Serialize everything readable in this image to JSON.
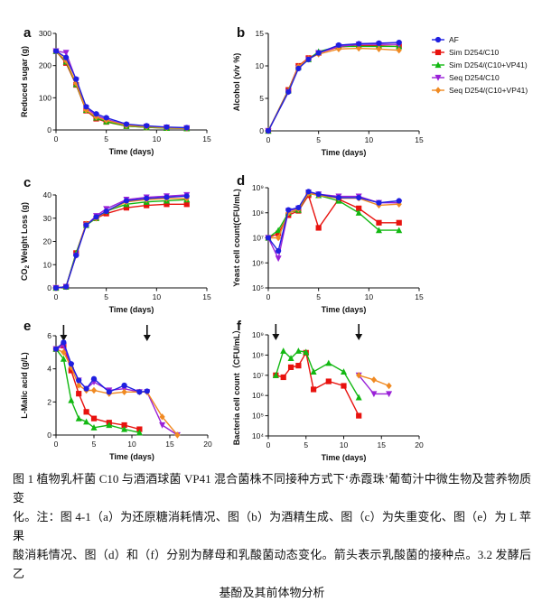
{
  "legend": [
    {
      "label": "AF",
      "color": "#1f1fe0"
    },
    {
      "label": "Sim D254/C10",
      "color": "#e8120e"
    },
    {
      "label": "Sim D254/(C10+VP41)",
      "color": "#12b812"
    },
    {
      "label": "Seq D254/C10",
      "color": "#9a21d8"
    },
    {
      "label": "Seq D254/(C10+VP41)",
      "color": "#f08a22"
    }
  ],
  "chart_data": [
    {
      "panel": "a",
      "type": "line",
      "xlabel": "Time (days)",
      "ylabel": "Reduced sugar (g)",
      "xlim": [
        0,
        15
      ],
      "ylim": [
        0,
        300
      ],
      "xticks": [
        0,
        5,
        10,
        15
      ],
      "yticks": [
        0,
        100,
        200,
        300
      ],
      "series": [
        {
          "name": "AF",
          "x": [
            0,
            1,
            2,
            3,
            4,
            5,
            7,
            9,
            11,
            13
          ],
          "y": [
            245,
            225,
            158,
            72,
            50,
            38,
            18,
            13,
            9,
            7
          ]
        },
        {
          "name": "Sim D254/C10",
          "x": [
            0,
            1,
            2,
            3,
            4,
            5,
            7,
            9,
            11,
            13
          ],
          "y": [
            245,
            208,
            140,
            60,
            35,
            25,
            12,
            8,
            6,
            5
          ]
        },
        {
          "name": "Sim D254/(C10+VP41)",
          "x": [
            0,
            1,
            2,
            3,
            4,
            5,
            7,
            9,
            11,
            13
          ],
          "y": [
            245,
            212,
            142,
            62,
            38,
            26,
            12,
            8,
            6,
            5
          ]
        },
        {
          "name": "Seq D254/C10",
          "x": [
            0,
            1,
            2,
            3,
            4,
            5,
            7,
            9,
            11,
            13
          ],
          "y": [
            245,
            240,
            155,
            68,
            45,
            33,
            15,
            11,
            8,
            6
          ]
        },
        {
          "name": "Seq D254/(C10+VP41)",
          "x": [
            0,
            1,
            2,
            3,
            4,
            5,
            7,
            9,
            11,
            13
          ],
          "y": [
            245,
            215,
            145,
            62,
            40,
            30,
            14,
            10,
            7,
            5
          ]
        }
      ]
    },
    {
      "panel": "b",
      "type": "line",
      "xlabel": "Time (days)",
      "ylabel": "Alcohol (v/v %)",
      "xlim": [
        0,
        15
      ],
      "ylim": [
        0,
        15
      ],
      "xticks": [
        0,
        5,
        10,
        15
      ],
      "yticks": [
        0,
        5,
        10,
        15
      ],
      "series": [
        {
          "name": "AF",
          "x": [
            0,
            2,
            3,
            4,
            5,
            7,
            9,
            11,
            13
          ],
          "y": [
            0,
            6,
            9.6,
            11,
            12,
            13.2,
            13.4,
            13.5,
            13.6
          ]
        },
        {
          "name": "Sim D254/C10",
          "x": [
            0,
            2,
            3,
            4,
            5,
            7,
            9,
            11,
            13
          ],
          "y": [
            0,
            6.3,
            10,
            11.2,
            12,
            12.9,
            13.1,
            13.1,
            13
          ]
        },
        {
          "name": "Sim D254/(C10+VP41)",
          "x": [
            0,
            2,
            3,
            4,
            5,
            7,
            9,
            11,
            13
          ],
          "y": [
            0,
            6.2,
            9.8,
            11,
            12.2,
            13,
            13,
            13,
            13
          ]
        },
        {
          "name": "Seq D254/C10",
          "x": [
            0,
            2,
            3,
            4,
            5,
            7,
            9,
            11,
            13
          ],
          "y": [
            0,
            6,
            9.7,
            11,
            12,
            13,
            13.3,
            13.3,
            13.3
          ]
        },
        {
          "name": "Seq D254/(C10+VP41)",
          "x": [
            0,
            2,
            3,
            4,
            5,
            7,
            9,
            11,
            13
          ],
          "y": [
            0,
            6.1,
            9.9,
            11.1,
            11.8,
            12.6,
            12.7,
            12.6,
            12.4
          ]
        }
      ]
    },
    {
      "panel": "c",
      "type": "line",
      "xlabel": "Time (days)",
      "ylabel": "CO2 Weight Loss (g)",
      "xlim": [
        0,
        15
      ],
      "ylim": [
        0,
        40
      ],
      "xticks": [
        0,
        5,
        10,
        15
      ],
      "yticks": [
        0,
        10,
        20,
        30,
        40
      ],
      "series": [
        {
          "name": "AF",
          "x": [
            0,
            1,
            2,
            3,
            4,
            5,
            7,
            9,
            11,
            13
          ],
          "y": [
            0,
            0.5,
            14,
            27,
            30.5,
            33,
            37.5,
            38.5,
            39,
            39.5
          ]
        },
        {
          "name": "Sim D254/C10",
          "x": [
            0,
            1,
            2,
            3,
            4,
            5,
            7,
            9,
            11,
            13
          ],
          "y": [
            0,
            0.5,
            15,
            27.5,
            30,
            32,
            34.5,
            35.5,
            36,
            36
          ]
        },
        {
          "name": "Sim D254/(C10+VP41)",
          "x": [
            0,
            1,
            2,
            3,
            4,
            5,
            7,
            9,
            11,
            13
          ],
          "y": [
            0,
            0.5,
            15,
            27,
            30,
            33,
            36,
            37,
            37.5,
            38
          ]
        },
        {
          "name": "Seq D254/C10",
          "x": [
            0,
            1,
            2,
            3,
            4,
            5,
            7,
            9,
            11,
            13
          ],
          "y": [
            0,
            0.5,
            14,
            27,
            31,
            34,
            38,
            39,
            39.5,
            40
          ]
        },
        {
          "name": "Seq D254/(C10+VP41)",
          "x": [
            0,
            1,
            2,
            3,
            4,
            5,
            7,
            9,
            11,
            13
          ],
          "y": [
            0,
            0.5,
            14,
            27.5,
            30,
            33,
            37,
            38,
            38.5,
            38.5
          ]
        }
      ]
    },
    {
      "panel": "d",
      "type": "line",
      "xlabel": "Time (days)",
      "ylabel": "Yeast cell count(CFU/mL)",
      "yscale": "log",
      "xlim": [
        0,
        15
      ],
      "ylim": [
        100000,
        1000000000
      ],
      "xticks": [
        0,
        5,
        10,
        15
      ],
      "yticks": [
        100000,
        1000000,
        10000000,
        100000000,
        1000000000
      ],
      "yticklabels": [
        "10⁵",
        "10⁶",
        "10⁷",
        "10⁸",
        "10⁹"
      ],
      "series": [
        {
          "name": "AF",
          "x": [
            0,
            1,
            2,
            3,
            4,
            5,
            7,
            9,
            11,
            13
          ],
          "y": [
            10000000,
            3000000,
            130000000,
            160000000,
            700000000,
            550000000,
            400000000,
            400000000,
            250000000,
            300000000
          ]
        },
        {
          "name": "Sim D254/C10",
          "x": [
            0,
            1,
            2,
            3,
            4,
            5,
            7,
            9,
            11,
            13
          ],
          "y": [
            10000000,
            15000000,
            80000000,
            120000000,
            500000000,
            25000000,
            350000000,
            150000000,
            40000000,
            40000000
          ]
        },
        {
          "name": "Sim D254/(C10+VP41)",
          "x": [
            0,
            1,
            2,
            3,
            4,
            5,
            7,
            9,
            11,
            13
          ],
          "y": [
            10000000,
            20000000,
            100000000,
            130000000,
            600000000,
            500000000,
            300000000,
            100000000,
            20000000,
            20000000
          ]
        },
        {
          "name": "Seq D254/C10",
          "x": [
            0,
            1,
            2,
            3,
            4,
            5,
            7,
            9,
            11,
            13
          ],
          "y": [
            10000000,
            1500000,
            120000000,
            150000000,
            650000000,
            550000000,
            450000000,
            450000000,
            250000000,
            250000000
          ]
        },
        {
          "name": "Seq D254/(C10+VP41)",
          "x": [
            0,
            1,
            2,
            3,
            4,
            5,
            7,
            9,
            11,
            13
          ],
          "y": [
            10000000,
            10000000,
            100000000,
            140000000,
            600000000,
            500000000,
            380000000,
            380000000,
            200000000,
            220000000
          ]
        }
      ]
    },
    {
      "panel": "e",
      "type": "line",
      "xlabel": "Time (days)",
      "ylabel": "L-Malic acid (g/L)",
      "xlim": [
        0,
        20
      ],
      "ylim": [
        0,
        6
      ],
      "xticks": [
        0,
        5,
        10,
        15,
        20
      ],
      "yticks": [
        0,
        2,
        4,
        6
      ],
      "arrows_at_x": [
        1,
        12
      ],
      "series": [
        {
          "name": "AF",
          "x": [
            0,
            1,
            2,
            3,
            4,
            5,
            7,
            9,
            11,
            12
          ],
          "y": [
            5.2,
            5.6,
            4.3,
            3.3,
            2.8,
            3.4,
            2.6,
            3.0,
            2.6,
            2.65
          ]
        },
        {
          "name": "Sim D254/C10",
          "x": [
            0,
            1,
            2,
            3,
            4,
            5,
            7,
            9,
            11
          ],
          "y": [
            5.2,
            5.4,
            3.9,
            2.5,
            1.4,
            1.0,
            0.75,
            0.6,
            0.35
          ]
        },
        {
          "name": "Sim D254/(C10+VP41)",
          "x": [
            0,
            1,
            2,
            3,
            4,
            5,
            7,
            9,
            11
          ],
          "y": [
            5.2,
            4.6,
            2.1,
            1.0,
            0.8,
            0.45,
            0.6,
            0.35,
            0.15
          ]
        },
        {
          "name": "Seq D254/C10",
          "x": [
            0,
            1,
            2,
            3,
            4,
            5,
            7,
            9,
            11,
            12,
            14,
            16
          ],
          "y": [
            5.2,
            5.4,
            4.2,
            3.3,
            2.8,
            3.2,
            2.7,
            2.8,
            2.6,
            2.6,
            0.6,
            0
          ]
        },
        {
          "name": "Seq D254/(C10+VP41)",
          "x": [
            0,
            1,
            2,
            3,
            4,
            5,
            7,
            9,
            11,
            12,
            14,
            16
          ],
          "y": [
            5.2,
            5.0,
            4.1,
            3.0,
            2.7,
            2.7,
            2.5,
            2.6,
            2.6,
            2.6,
            1.1,
            0
          ]
        }
      ]
    },
    {
      "panel": "f",
      "type": "line",
      "xlabel": "Time (days)",
      "ylabel": "Bacteria cell count（CFU/mL）",
      "yscale": "log",
      "xlim": [
        0,
        20
      ],
      "ylim": [
        10000,
        1000000000
      ],
      "xticks": [
        0,
        5,
        10,
        15,
        20
      ],
      "yticks": [
        10000,
        100000,
        1000000,
        10000000,
        100000000,
        1000000000
      ],
      "yticklabels": [
        "10⁴",
        "10⁵",
        "10⁶",
        "10⁷",
        "10⁸",
        "10⁹"
      ],
      "arrows_at_x": [
        1,
        12
      ],
      "series": [
        {
          "name": "Sim D254/C10",
          "x": [
            1,
            2,
            3,
            4,
            5,
            6,
            8,
            10,
            12
          ],
          "y": [
            10000000,
            8000000,
            25000000,
            30000000,
            130000000,
            2000000,
            5000000,
            3000000,
            100000
          ]
        },
        {
          "name": "Sim D254/(C10+VP41)",
          "x": [
            1,
            2,
            3,
            4,
            5,
            6,
            8,
            10,
            12
          ],
          "y": [
            10000000,
            160000000,
            70000000,
            160000000,
            140000000,
            15000000,
            40000000,
            15000000,
            800000
          ]
        },
        {
          "name": "Seq D254/C10",
          "x": [
            12,
            14,
            16
          ],
          "y": [
            10000000,
            1200000,
            1200000
          ]
        },
        {
          "name": "Seq D254/(C10+VP41)",
          "x": [
            12,
            14,
            16
          ],
          "y": [
            10000000,
            6000000,
            3000000
          ]
        }
      ]
    }
  ],
  "caption": {
    "lines": [
      "图 1  植物乳杆菌 C10 与酒酒球菌 VP41 混合菌株不同接种方式下‘赤霞珠’葡萄汁中微生物及营养物质变",
      "化。注：图 4-1（a）为还原糖消耗情况、图（b）为酒精生成、图（c）为失重变化、图（e）为 L 苹果",
      "酸消耗情况、图（d）和（f）分别为酵母和乳酸菌动态变化。箭头表示乳酸菌的接种点。3.2  发酵后乙",
      "基酚及其前体物分析"
    ]
  }
}
